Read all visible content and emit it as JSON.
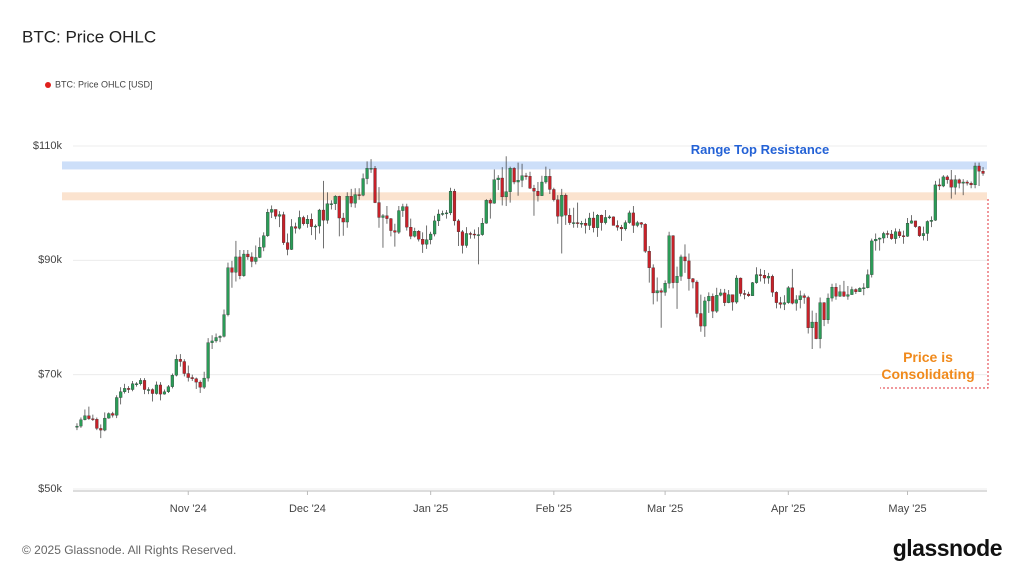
{
  "chart_data": {
    "type": "candlestick",
    "title": "BTC: Price OHLC",
    "series_name": "BTC: Price OHLC [USD]",
    "legend_color": "#e0201c",
    "up_color": "#2b9b57",
    "down_color": "#c62129",
    "footer": "© 2025 Glassnode. All Rights Reserved.",
    "brand": "glassnode",
    "ylim": [
      50000,
      110000
    ],
    "yticks": [
      {
        "value": 50000,
        "label": "$50k"
      },
      {
        "value": 70000,
        "label": "$70k"
      },
      {
        "value": 90000,
        "label": "$90k"
      },
      {
        "value": 110000,
        "label": "$110k"
      }
    ],
    "grid": true,
    "xlim": [
      -1,
      229
    ],
    "xticks": [
      {
        "value": 28,
        "label": "Nov '24"
      },
      {
        "value": 58,
        "label": "Dec '24"
      },
      {
        "value": 89,
        "label": "Jan '25"
      },
      {
        "value": 120,
        "label": "Feb '25"
      },
      {
        "value": 148,
        "label": "Mar '25"
      },
      {
        "value": 179,
        "label": "Apr '25"
      },
      {
        "value": 209,
        "label": "May '25"
      }
    ],
    "bands": [
      {
        "label": "Range Top Resistance",
        "from": 105900,
        "to": 107300,
        "color": "#cddff9",
        "label_color": "#2462d6"
      },
      {
        "from": 100500,
        "to": 101900,
        "color": "#fbe3cf"
      }
    ],
    "annotation": "Price is Consolidating",
    "open": [
      60800,
      61000,
      62100,
      62800,
      62300,
      62200,
      60600,
      60300,
      62400,
      63200,
      62900,
      66000,
      67000,
      67600,
      67400,
      68400,
      68400,
      69000,
      67400,
      67400,
      66700,
      68200,
      66600,
      67000,
      67900,
      69900,
      72700,
      72300,
      70200,
      69500,
      69300,
      68700,
      67800,
      69400,
      75600,
      75900,
      76500,
      76700,
      80500,
      88700,
      87900,
      90600,
      87300,
      91100,
      90600,
      89800,
      90500,
      92300,
      94300,
      98400,
      98900,
      97700,
      98000,
      93100,
      91900,
      95900,
      95600,
      97500,
      96400,
      97200,
      95900,
      96000,
      98800,
      97000,
      99900,
      99900,
      101200,
      97400,
      96700,
      101200,
      100000,
      101500,
      101400,
      104300,
      106100,
      106100,
      100100,
      97500,
      97800,
      97300,
      95200,
      94900,
      98700,
      99400,
      95800,
      94200,
      95100,
      93700,
      92800,
      93600,
      94600,
      96900,
      98100,
      98200,
      98300,
      102100,
      96900,
      95000,
      92600,
      94700,
      94600,
      94500,
      94500,
      96500,
      100500,
      100000,
      104100,
      104400,
      101100,
      102000,
      106100,
      103700,
      104000,
      104800,
      104700,
      102600,
      102100,
      101300,
      103700,
      104700,
      102400,
      100600,
      97700,
      101400,
      97900,
      96600,
      96600,
      96500,
      96500,
      96100,
      97400,
      95700,
      97900,
      96600,
      97500,
      97600,
      96100,
      95800,
      95500,
      96600,
      98300,
      96100,
      96600,
      96300,
      91600,
      88700,
      84300,
      84700,
      84400,
      86000,
      94300,
      86100,
      87200,
      90600,
      89900,
      86800,
      86200,
      80700,
      78500,
      82900,
      83700,
      81100,
      83900,
      84300,
      82600,
      84000,
      82700,
      86900,
      84200,
      84100,
      83800,
      86100,
      87500,
      87400,
      86900,
      87200,
      84400,
      82600,
      82300,
      82600,
      85200,
      82500,
      83100,
      83800,
      83500,
      78200,
      79200,
      76300,
      82600,
      79600,
      83400,
      85300,
      83700,
      84500,
      83700,
      84000,
      84900,
      84500,
      85100,
      85200,
      87500,
      93400,
      93700,
      93900,
      94700,
      94600,
      93800,
      95000,
      94300,
      94200,
      96500,
      96900,
      95900,
      94300,
      94700,
      96800,
      97000,
      103200,
      103000,
      104600,
      104100,
      102800,
      104100,
      103500,
      103700,
      103500,
      103200,
      106500,
      105600
    ],
    "high": [
      61500,
      62500,
      63900,
      64400,
      63000,
      62500,
      61300,
      63400,
      63400,
      63500,
      66400,
      67800,
      68400,
      68000,
      68900,
      68700,
      69400,
      69400,
      67800,
      67600,
      68800,
      68700,
      67400,
      68200,
      70200,
      73500,
      73600,
      72700,
      71600,
      70000,
      69500,
      69000,
      70500,
      76400,
      76900,
      77200,
      76900,
      81400,
      89600,
      89900,
      93400,
      91800,
      91800,
      91800,
      91400,
      92600,
      94000,
      94900,
      99000,
      99600,
      98800,
      98600,
      98500,
      94700,
      97200,
      96600,
      98700,
      97800,
      97900,
      98200,
      96300,
      99000,
      103900,
      101900,
      100500,
      101400,
      101300,
      98300,
      101900,
      102500,
      102600,
      102600,
      105200,
      107300,
      107700,
      106500,
      102800,
      98100,
      99500,
      97400,
      96400,
      99500,
      99900,
      99900,
      97300,
      95700,
      95300,
      94900,
      96100,
      95000,
      97800,
      98900,
      98700,
      98800,
      102700,
      102500,
      97200,
      95300,
      95800,
      95000,
      95400,
      95800,
      97400,
      100700,
      100800,
      105900,
      104900,
      106300,
      108200,
      106400,
      106300,
      107100,
      106900,
      105300,
      105500,
      103200,
      103700,
      104800,
      106400,
      106000,
      102700,
      101400,
      102500,
      101700,
      99100,
      99200,
      100100,
      96900,
      97300,
      98300,
      98500,
      98100,
      98000,
      98800,
      97900,
      97700,
      97000,
      96200,
      97000,
      98700,
      99500,
      96900,
      96700,
      96500,
      92500,
      89300,
      87000,
      85100,
      86500,
      95000,
      94400,
      88900,
      91000,
      92800,
      91200,
      86900,
      86500,
      84000,
      83600,
      84400,
      84200,
      85200,
      85000,
      85000,
      84800,
      84000,
      87400,
      87000,
      84800,
      84500,
      86200,
      88800,
      88500,
      88300,
      87800,
      87500,
      84600,
      83600,
      83900,
      85500,
      88500,
      83900,
      84700,
      84200,
      83800,
      81200,
      80800,
      83500,
      82700,
      84200,
      85900,
      86000,
      85700,
      86400,
      85500,
      85400,
      85100,
      85300,
      86000,
      88400,
      93800,
      94700,
      94000,
      95000,
      95200,
      95300,
      95600,
      95500,
      95200,
      97400,
      97900,
      96900,
      96000,
      95900,
      97000,
      97700,
      103900,
      104300,
      104900,
      104900,
      105800,
      104900,
      104300,
      104200,
      104000,
      103800,
      107100,
      107100,
      106300
    ],
    "low": [
      60300,
      60700,
      62000,
      62100,
      61900,
      60300,
      58900,
      60100,
      62300,
      62500,
      62400,
      64800,
      66700,
      66800,
      67100,
      67900,
      68100,
      66600,
      66600,
      65300,
      66500,
      65500,
      66500,
      66800,
      67600,
      69700,
      71400,
      69700,
      68800,
      68900,
      67500,
      66800,
      67500,
      68800,
      74500,
      75600,
      75700,
      76500,
      80200,
      85200,
      86300,
      86700,
      87100,
      90100,
      88800,
      89300,
      90400,
      91600,
      94100,
      97400,
      97200,
      95800,
      92700,
      90900,
      91800,
      94700,
      95400,
      96100,
      95700,
      94400,
      93600,
      94700,
      92100,
      96400,
      98900,
      98800,
      94200,
      94300,
      95700,
      99300,
      99200,
      100600,
      101200,
      103300,
      105300,
      100000,
      95700,
      92200,
      96400,
      94200,
      92400,
      94600,
      97600,
      95200,
      93700,
      94000,
      93300,
      91300,
      92000,
      92800,
      94200,
      96000,
      97800,
      97300,
      97900,
      96100,
      92500,
      91200,
      92200,
      93800,
      93800,
      89300,
      94300,
      96400,
      97300,
      99900,
      102300,
      99600,
      99500,
      100100,
      103300,
      101300,
      102800,
      104100,
      102500,
      97800,
      100300,
      101300,
      103400,
      101600,
      100300,
      96400,
      91200,
      96200,
      96200,
      95700,
      95700,
      95700,
      94700,
      95300,
      94900,
      94100,
      95200,
      96300,
      97200,
      96100,
      95200,
      93400,
      95200,
      96400,
      94800,
      95800,
      95700,
      91300,
      86100,
      82300,
      82800,
      78200,
      83800,
      85100,
      85100,
      81500,
      86400,
      87800,
      84700,
      85100,
      80000,
      77500,
      76600,
      80800,
      79900,
      80800,
      83700,
      82000,
      82500,
      81200,
      82400,
      83700,
      83200,
      83600,
      83800,
      85900,
      86300,
      85900,
      85900,
      83600,
      81600,
      81600,
      81300,
      82400,
      82300,
      81200,
      81600,
      82400,
      77200,
      74500,
      76200,
      74600,
      78500,
      78900,
      82800,
      83100,
      83600,
      83600,
      83100,
      84000,
      84100,
      84500,
      83900,
      85100,
      87000,
      91700,
      91700,
      93000,
      93900,
      93600,
      92900,
      93900,
      92900,
      94100,
      96400,
      95700,
      94100,
      93500,
      93400,
      95800,
      96900,
      102300,
      102800,
      103400,
      100800,
      101500,
      102600,
      101400,
      103100,
      102600,
      102600,
      103000,
      104800
    ],
    "close": [
      61000,
      62100,
      62800,
      62300,
      62200,
      60600,
      60300,
      62400,
      63200,
      62900,
      66000,
      67000,
      67600,
      67400,
      68400,
      68400,
      69000,
      67400,
      67400,
      66700,
      68200,
      66600,
      67000,
      67900,
      69900,
      72700,
      72300,
      70200,
      69500,
      69300,
      68700,
      67800,
      69400,
      75600,
      75900,
      76500,
      76700,
      80500,
      88700,
      87900,
      90600,
      87300,
      91100,
      90600,
      89800,
      90500,
      92300,
      94300,
      98400,
      98900,
      97700,
      98000,
      93100,
      91900,
      95900,
      95600,
      97500,
      96400,
      97200,
      95900,
      96000,
      98800,
      97000,
      99900,
      99900,
      101200,
      97400,
      96700,
      101200,
      100000,
      101500,
      101400,
      104300,
      106100,
      106100,
      100100,
      97500,
      97800,
      97300,
      95200,
      94900,
      98700,
      99400,
      95800,
      94200,
      95100,
      93700,
      92800,
      93600,
      94600,
      96900,
      98100,
      98200,
      98300,
      102100,
      96900,
      95000,
      92600,
      94700,
      94600,
      94500,
      94500,
      96500,
      100500,
      100000,
      104100,
      104400,
      101100,
      102000,
      106100,
      103700,
      104000,
      104800,
      104700,
      102600,
      102100,
      101300,
      103700,
      104700,
      102400,
      100600,
      97700,
      101400,
      97900,
      96600,
      96600,
      96500,
      96500,
      96100,
      97400,
      95700,
      97900,
      96600,
      97500,
      97600,
      96100,
      95800,
      95500,
      96600,
      98300,
      96100,
      96600,
      96300,
      91600,
      88700,
      84300,
      84700,
      84400,
      86000,
      94300,
      86100,
      87200,
      90600,
      89900,
      86800,
      86200,
      80700,
      78500,
      82900,
      83700,
      81100,
      83900,
      84300,
      82600,
      84000,
      82700,
      86900,
      84200,
      84100,
      83800,
      86100,
      87500,
      87400,
      86900,
      87200,
      84400,
      82600,
      82300,
      82600,
      85200,
      82500,
      83100,
      83800,
      83500,
      78200,
      79200,
      76300,
      82600,
      79600,
      83400,
      85300,
      83700,
      84500,
      83700,
      84000,
      84900,
      84500,
      85100,
      85200,
      87500,
      93400,
      93700,
      93900,
      94700,
      94600,
      93800,
      95000,
      94300,
      94200,
      96500,
      96900,
      95900,
      94300,
      94700,
      96800,
      97000,
      103200,
      103000,
      104600,
      104100,
      102800,
      104100,
      103500,
      103700,
      103500,
      103200,
      106500,
      105600,
      105200
    ]
  }
}
